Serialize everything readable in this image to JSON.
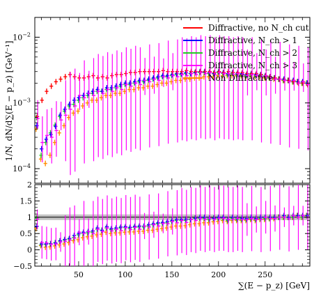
{
  "chart_data": [
    {
      "type": "scatter",
      "panel": "main",
      "ylabel": "1/N, dN/d∑(E − p_z) [GeV⁻¹]",
      "y_scale": "log",
      "ylim": [
        6e-05,
        0.02
      ],
      "xlim": [
        3,
        298
      ],
      "yticks": [
        {
          "value": 0.0001,
          "base": "10",
          "exp": "−4"
        },
        {
          "value": 0.001,
          "base": "10",
          "exp": "−3"
        },
        {
          "value": 0.01,
          "base": "10",
          "exp": "−2"
        }
      ],
      "legend_position": "top-right",
      "legend": [
        {
          "label": "Diffractive, no N_ch cut",
          "color": "#ff0000"
        },
        {
          "label": "Diffractive, N_ch > 1",
          "color": "#0000ff"
        },
        {
          "label": "Diffractive, N_ch > 2",
          "color": "#22cc22"
        },
        {
          "label": "Diffractive, N_ch > 3",
          "color": "#ff00ff"
        },
        {
          "label": "Non Diffractive",
          "color": "#ff8c00"
        }
      ],
      "x": [
        5,
        10,
        15,
        20,
        25,
        30,
        35,
        40,
        45,
        50,
        55,
        60,
        65,
        70,
        75,
        80,
        85,
        90,
        95,
        100,
        105,
        110,
        115,
        120,
        125,
        130,
        135,
        140,
        145,
        150,
        155,
        160,
        165,
        170,
        175,
        180,
        185,
        190,
        195,
        200,
        205,
        210,
        215,
        220,
        225,
        230,
        235,
        240,
        245,
        250,
        255,
        260,
        265,
        270,
        275,
        280,
        285,
        290,
        295
      ],
      "series": [
        {
          "name": "Diffractive, no N_ch cut",
          "color": "#ff0000",
          "values": [
            0.00062,
            0.0011,
            0.0015,
            0.0018,
            0.0021,
            0.0023,
            0.0025,
            0.0027,
            0.0025,
            0.0024,
            0.0024,
            0.0025,
            0.0026,
            0.0024,
            0.0025,
            0.0024,
            0.0026,
            0.0027,
            0.0027,
            0.0028,
            0.0029,
            0.0029,
            0.003,
            0.003,
            0.003,
            0.003,
            0.003,
            0.0031,
            0.003,
            0.003,
            0.003,
            0.003,
            0.0031,
            0.003,
            0.003,
            0.003,
            0.003,
            0.003,
            0.0029,
            0.003,
            0.0029,
            0.003,
            0.0029,
            0.0029,
            0.0029,
            0.0028,
            0.0028,
            0.0028,
            0.0027,
            0.0026,
            0.0025,
            0.0024,
            0.0023,
            0.0022,
            0.0022,
            0.0021,
            0.002,
            0.002,
            0.0019
          ]
        },
        {
          "name": "Diffractive, N_ch > 1",
          "color": "#0000ff",
          "values": [
            0.00045,
            0.0002,
            0.00028,
            0.00033,
            0.00044,
            0.00065,
            0.0008,
            0.00095,
            0.0011,
            0.0012,
            0.0013,
            0.0014,
            0.0015,
            0.0016,
            0.0015,
            0.0017,
            0.0017,
            0.0018,
            0.0019,
            0.002,
            0.002,
            0.0021,
            0.0022,
            0.0022,
            0.0023,
            0.0024,
            0.0025,
            0.0026,
            0.0026,
            0.0027,
            0.0028,
            0.0028,
            0.0029,
            0.0028,
            0.0029,
            0.003,
            0.003,
            0.0029,
            0.0028,
            0.003,
            0.0029,
            0.0028,
            0.0029,
            0.0028,
            0.0028,
            0.0027,
            0.0028,
            0.0027,
            0.0027,
            0.0026,
            0.0025,
            0.0024,
            0.0023,
            0.0023,
            0.0022,
            0.0022,
            0.0021,
            0.0021,
            0.002
          ]
        },
        {
          "name": "Diffractive, N_ch > 2",
          "color": "#22cc22",
          "values": [
            0.0006,
            0.00016,
            0.00025,
            0.00035,
            0.00046,
            0.00062,
            0.00075,
            0.0009,
            0.00095,
            0.0011,
            0.0012,
            0.0013,
            0.0014,
            0.0015,
            0.0015,
            0.0016,
            0.0016,
            0.0017,
            0.0018,
            0.0019,
            0.0019,
            0.002,
            0.0021,
            0.0021,
            0.0022,
            0.0023,
            0.0024,
            0.0025,
            0.0025,
            0.0026,
            0.0027,
            0.0027,
            0.0028,
            0.0028,
            0.0029,
            0.0029,
            0.0029,
            0.0028,
            0.0028,
            0.0029,
            0.0028,
            0.0027,
            0.0028,
            0.0027,
            0.0027,
            0.0026,
            0.0027,
            0.0026,
            0.0026,
            0.0025,
            0.0024,
            0.0024,
            0.0023,
            0.0022,
            0.0022,
            0.0021,
            0.0021,
            0.002,
            0.002
          ]
        },
        {
          "name": "Diffractive, N_ch > 3",
          "color": "#ff00ff",
          "values": [
            0.00058,
            0.00025,
            0.00032,
            0.0003,
            0.00038,
            0.00055,
            0.00065,
            0.0008,
            0.0009,
            0.0013,
            0.0012,
            0.0014,
            0.0013,
            0.0015,
            0.0014,
            0.0016,
            0.0015,
            0.0017,
            0.0016,
            0.0019,
            0.0018,
            0.002,
            0.0019,
            0.0022,
            0.0021,
            0.0023,
            0.0022,
            0.0025,
            0.0024,
            0.0026,
            0.0025,
            0.0027,
            0.0026,
            0.0028,
            0.0027,
            0.0029,
            0.0028,
            0.0029,
            0.0027,
            0.0029,
            0.0028,
            0.0028,
            0.0027,
            0.0028,
            0.0027,
            0.0026,
            0.0027,
            0.0026,
            0.0025,
            0.0026,
            0.0024,
            0.0023,
            0.0023,
            0.0022,
            0.0021,
            0.0022,
            0.002,
            0.0021,
            0.0019
          ],
          "yerr_rel": [
            0.3,
            0.5,
            0.5,
            0.6,
            0.6,
            0.3,
            0.8,
            0.9,
            0.9,
            0.4,
            0.9,
            0.4,
            0.9,
            0.9,
            0.9,
            0.9,
            0.9,
            0.9,
            0.9,
            0.9,
            0.9,
            0.9,
            0.9,
            0.4,
            0.9,
            0.4,
            0.9,
            0.3,
            0.9,
            0.4,
            0.9,
            0.9,
            0.9,
            0.9,
            0.9,
            0.9,
            0.9,
            0.9,
            0.9,
            0.9,
            0.9,
            0.9,
            0.9,
            0.9,
            0.9,
            0.5,
            0.9,
            0.4,
            0.9,
            0.5,
            0.9,
            0.4,
            0.9,
            0.3,
            0.9,
            0.3,
            0.9,
            0.3,
            0.9
          ]
        },
        {
          "name": "Non Diffractive",
          "color": "#ff8c00",
          "values": [
            0.0004,
            0.00014,
            0.00012,
            0.00016,
            0.00025,
            0.00035,
            0.00045,
            0.0006,
            0.0007,
            0.00075,
            0.0009,
            0.001,
            0.0011,
            0.0011,
            0.0012,
            0.0013,
            0.0013,
            0.0014,
            0.0014,
            0.0015,
            0.0016,
            0.0016,
            0.0017,
            0.0017,
            0.0018,
            0.0018,
            0.0019,
            0.002,
            0.002,
            0.0021,
            0.0022,
            0.0022,
            0.0023,
            0.0023,
            0.0024,
            0.0024,
            0.0025,
            0.0025,
            0.0025,
            0.0026,
            0.0026,
            0.0026,
            0.0026,
            0.0026,
            0.0026,
            0.0025,
            0.0026,
            0.0025,
            0.0025,
            0.0024,
            0.0024,
            0.0023,
            0.0023,
            0.0022,
            0.0022,
            0.0021,
            0.0021,
            0.002,
            0.002
          ]
        }
      ]
    },
    {
      "type": "scatter",
      "panel": "ratio",
      "xlabel": "∑(E − p_z) [GeV]",
      "ylim": [
        -0.5,
        2
      ],
      "yticks": [
        -0.5,
        0,
        0.5,
        1,
        1.5,
        2
      ],
      "xticks": [
        50,
        100,
        150,
        200,
        250
      ],
      "reference_line": 1,
      "x": [
        5,
        10,
        15,
        20,
        25,
        30,
        35,
        40,
        45,
        50,
        55,
        60,
        65,
        70,
        75,
        80,
        85,
        90,
        95,
        100,
        105,
        110,
        115,
        120,
        125,
        130,
        135,
        140,
        145,
        150,
        155,
        160,
        165,
        170,
        175,
        180,
        185,
        190,
        195,
        200,
        205,
        210,
        215,
        220,
        225,
        230,
        235,
        240,
        245,
        250,
        255,
        260,
        265,
        270,
        275,
        280,
        285,
        290,
        295
      ],
      "series": [
        {
          "name": "Diffractive, N_ch > 1",
          "color": "#0000ff",
          "values": [
            0.72,
            0.18,
            0.18,
            0.18,
            0.21,
            0.28,
            0.32,
            0.35,
            0.44,
            0.5,
            0.54,
            0.56,
            0.58,
            0.67,
            0.6,
            0.71,
            0.65,
            0.67,
            0.7,
            0.71,
            0.69,
            0.72,
            0.73,
            0.73,
            0.77,
            0.8,
            0.83,
            0.84,
            0.87,
            0.9,
            0.93,
            0.93,
            0.94,
            0.93,
            0.97,
            1.0,
            1.0,
            0.97,
            0.97,
            1.0,
            1.0,
            0.93,
            1.0,
            0.97,
            0.97,
            0.96,
            1.0,
            0.96,
            1.0,
            1.0,
            1.0,
            1.0,
            1.0,
            1.05,
            1.0,
            1.05,
            1.05,
            1.05,
            1.05
          ]
        },
        {
          "name": "Diffractive, N_ch > 2",
          "color": "#22cc22",
          "values": [
            0.97,
            0.15,
            0.17,
            0.19,
            0.22,
            0.27,
            0.3,
            0.33,
            0.38,
            0.46,
            0.5,
            0.52,
            0.54,
            0.63,
            0.6,
            0.67,
            0.62,
            0.63,
            0.67,
            0.68,
            0.66,
            0.69,
            0.7,
            0.7,
            0.73,
            0.77,
            0.8,
            0.81,
            0.83,
            0.87,
            0.9,
            0.9,
            0.9,
            0.93,
            0.97,
            0.97,
            0.97,
            0.93,
            0.97,
            0.97,
            0.97,
            0.9,
            0.97,
            0.93,
            0.93,
            0.93,
            0.96,
            0.93,
            0.96,
            0.96,
            0.96,
            1.0,
            1.0,
            1.0,
            1.0,
            1.0,
            1.05,
            1.0,
            1.05
          ]
        },
        {
          "name": "Diffractive, N_ch > 3",
          "color": "#ff00ff",
          "values": [
            0.94,
            0.23,
            0.21,
            0.17,
            0.18,
            0.24,
            0.26,
            0.3,
            0.36,
            0.54,
            0.5,
            0.56,
            0.5,
            0.63,
            0.56,
            0.67,
            0.58,
            0.63,
            0.59,
            0.68,
            0.62,
            0.69,
            0.63,
            0.73,
            0.7,
            0.77,
            0.73,
            0.81,
            0.8,
            0.87,
            0.83,
            0.9,
            0.84,
            0.93,
            0.9,
            0.97,
            0.93,
            0.97,
            0.93,
            0.97,
            0.97,
            0.93,
            0.93,
            0.97,
            0.93,
            0.93,
            0.96,
            0.93,
            0.93,
            1.0,
            0.96,
            0.96,
            1.0,
            1.0,
            0.95,
            1.05,
            1.0,
            1.05,
            1.0
          ],
          "yerr_abs": [
            0.3,
            0.5,
            0.5,
            0.5,
            0.5,
            0.3,
            0.8,
            1.0,
            1.0,
            0.4,
            1.0,
            0.4,
            1.0,
            1.0,
            1.0,
            1.0,
            1.0,
            1.0,
            1.0,
            1.0,
            1.0,
            1.0,
            1.0,
            0.4,
            1.0,
            0.4,
            1.0,
            0.3,
            1.0,
            0.4,
            1.0,
            1.0,
            1.0,
            1.0,
            1.0,
            1.0,
            1.0,
            1.0,
            1.0,
            1.0,
            1.0,
            1.0,
            1.0,
            1.0,
            1.0,
            0.5,
            1.0,
            0.4,
            1.0,
            0.5,
            1.0,
            0.4,
            1.0,
            0.3,
            1.0,
            0.3,
            1.0,
            0.3,
            1.0
          ]
        },
        {
          "name": "Non Diffractive",
          "color": "#ff8c00",
          "values": [
            0.65,
            0.13,
            0.08,
            0.09,
            0.12,
            0.15,
            0.18,
            0.22,
            0.28,
            0.31,
            0.37,
            0.4,
            0.42,
            0.46,
            0.48,
            0.54,
            0.5,
            0.52,
            0.52,
            0.54,
            0.55,
            0.55,
            0.57,
            0.57,
            0.6,
            0.6,
            0.63,
            0.65,
            0.67,
            0.7,
            0.73,
            0.73,
            0.74,
            0.77,
            0.8,
            0.8,
            0.83,
            0.83,
            0.86,
            0.87,
            0.9,
            0.87,
            0.9,
            0.9,
            0.9,
            0.9,
            0.93,
            0.9,
            0.93,
            0.93,
            0.96,
            0.96,
            1.0,
            1.0,
            1.0,
            1.0,
            1.05,
            1.0,
            1.05
          ]
        }
      ]
    }
  ]
}
